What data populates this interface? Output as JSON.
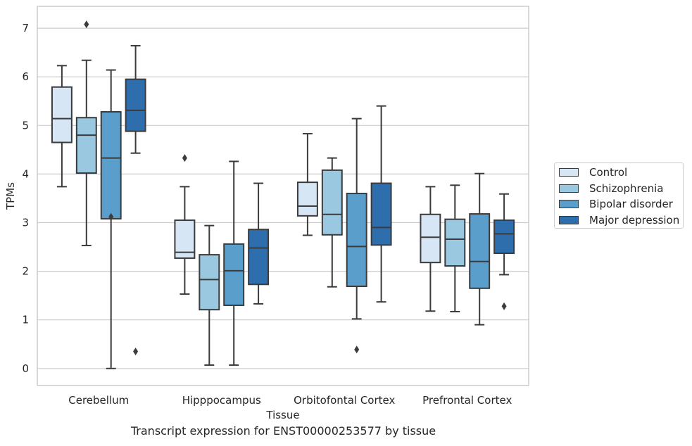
{
  "chart_data": {
    "type": "box",
    "title": "",
    "caption": "Transcript expression for ENST00000253577 by tissue",
    "xlabel": "Tissue",
    "ylabel": "TPMs",
    "ylim": [
      -0.35,
      7.45
    ],
    "yticks": [
      0,
      1,
      2,
      3,
      4,
      5,
      6,
      7
    ],
    "grid": true,
    "legend_position": "right",
    "categories": [
      "Cerebellum",
      "Hipppocampus",
      "Orbitofontal Cortex",
      "Prefrontal Cortex"
    ],
    "series": [
      {
        "name": "Control",
        "color": "#d6e6f4",
        "boxes": [
          {
            "whislo": 3.74,
            "q1": 4.65,
            "med": 5.14,
            "q3": 5.79,
            "whishi": 6.23,
            "fliers": []
          },
          {
            "whislo": 1.53,
            "q1": 2.27,
            "med": 2.39,
            "q3": 3.05,
            "whishi": 3.74,
            "fliers": [
              4.33
            ]
          },
          {
            "whislo": 2.74,
            "q1": 3.14,
            "med": 3.34,
            "q3": 3.83,
            "whishi": 4.83,
            "fliers": []
          },
          {
            "whislo": 1.18,
            "q1": 2.18,
            "med": 2.7,
            "q3": 3.17,
            "whishi": 3.74,
            "fliers": []
          }
        ]
      },
      {
        "name": "Schizophrenia",
        "color": "#9ac8e0",
        "boxes": [
          {
            "whislo": 2.53,
            "q1": 4.02,
            "med": 4.8,
            "q3": 5.16,
            "whishi": 6.34,
            "fliers": [
              7.08
            ]
          },
          {
            "whislo": 0.07,
            "q1": 1.21,
            "med": 1.83,
            "q3": 2.34,
            "whishi": 2.94,
            "fliers": []
          },
          {
            "whislo": 1.68,
            "q1": 2.75,
            "med": 3.17,
            "q3": 4.08,
            "whishi": 4.33,
            "fliers": []
          },
          {
            "whislo": 1.17,
            "q1": 2.11,
            "med": 2.66,
            "q3": 3.07,
            "whishi": 3.77,
            "fliers": []
          }
        ]
      },
      {
        "name": "Bipolar disorder",
        "color": "#5a9ecc",
        "boxes": [
          {
            "whislo": 0.0,
            "q1": 3.08,
            "med": 4.33,
            "q3": 5.28,
            "whishi": 6.14,
            "fliers": [
              3.12
            ]
          },
          {
            "whislo": 0.07,
            "q1": 1.3,
            "med": 2.01,
            "q3": 2.56,
            "whishi": 4.26,
            "fliers": []
          },
          {
            "whislo": 1.02,
            "q1": 1.69,
            "med": 2.51,
            "q3": 3.6,
            "whishi": 5.14,
            "fliers": [
              0.39
            ]
          },
          {
            "whislo": 0.9,
            "q1": 1.65,
            "med": 2.2,
            "q3": 3.18,
            "whishi": 4.01,
            "fliers": []
          }
        ]
      },
      {
        "name": "Major depression",
        "color": "#2f6ead",
        "boxes": [
          {
            "whislo": 4.43,
            "q1": 4.88,
            "med": 5.31,
            "q3": 5.95,
            "whishi": 6.64,
            "fliers": [
              0.35
            ]
          },
          {
            "whislo": 1.33,
            "q1": 1.73,
            "med": 2.48,
            "q3": 2.86,
            "whishi": 3.81,
            "fliers": []
          },
          {
            "whislo": 1.37,
            "q1": 2.54,
            "med": 2.9,
            "q3": 3.81,
            "whishi": 5.4,
            "fliers": []
          },
          {
            "whislo": 1.93,
            "q1": 2.37,
            "med": 2.77,
            "q3": 3.05,
            "whishi": 3.59,
            "fliers": [
              1.28
            ]
          }
        ]
      }
    ]
  }
}
